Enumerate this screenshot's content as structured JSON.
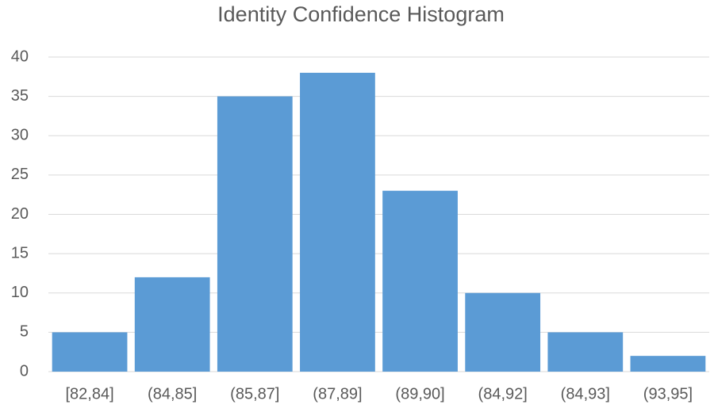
{
  "chart_data": {
    "type": "bar",
    "title": "Identity Confidence Histogram",
    "categories": [
      "[82,84]",
      "(84,85]",
      "(85,87]",
      "(87,89]",
      "(89,90]",
      "(84,92]",
      "(84,93]",
      "(93,95]"
    ],
    "values": [
      5,
      12,
      35,
      38,
      23,
      10,
      5,
      2
    ],
    "color": "#5b9bd5",
    "ylim": [
      0,
      40
    ],
    "yticks": [
      0,
      5,
      10,
      15,
      20,
      25,
      30,
      35,
      40
    ],
    "grid": true
  }
}
